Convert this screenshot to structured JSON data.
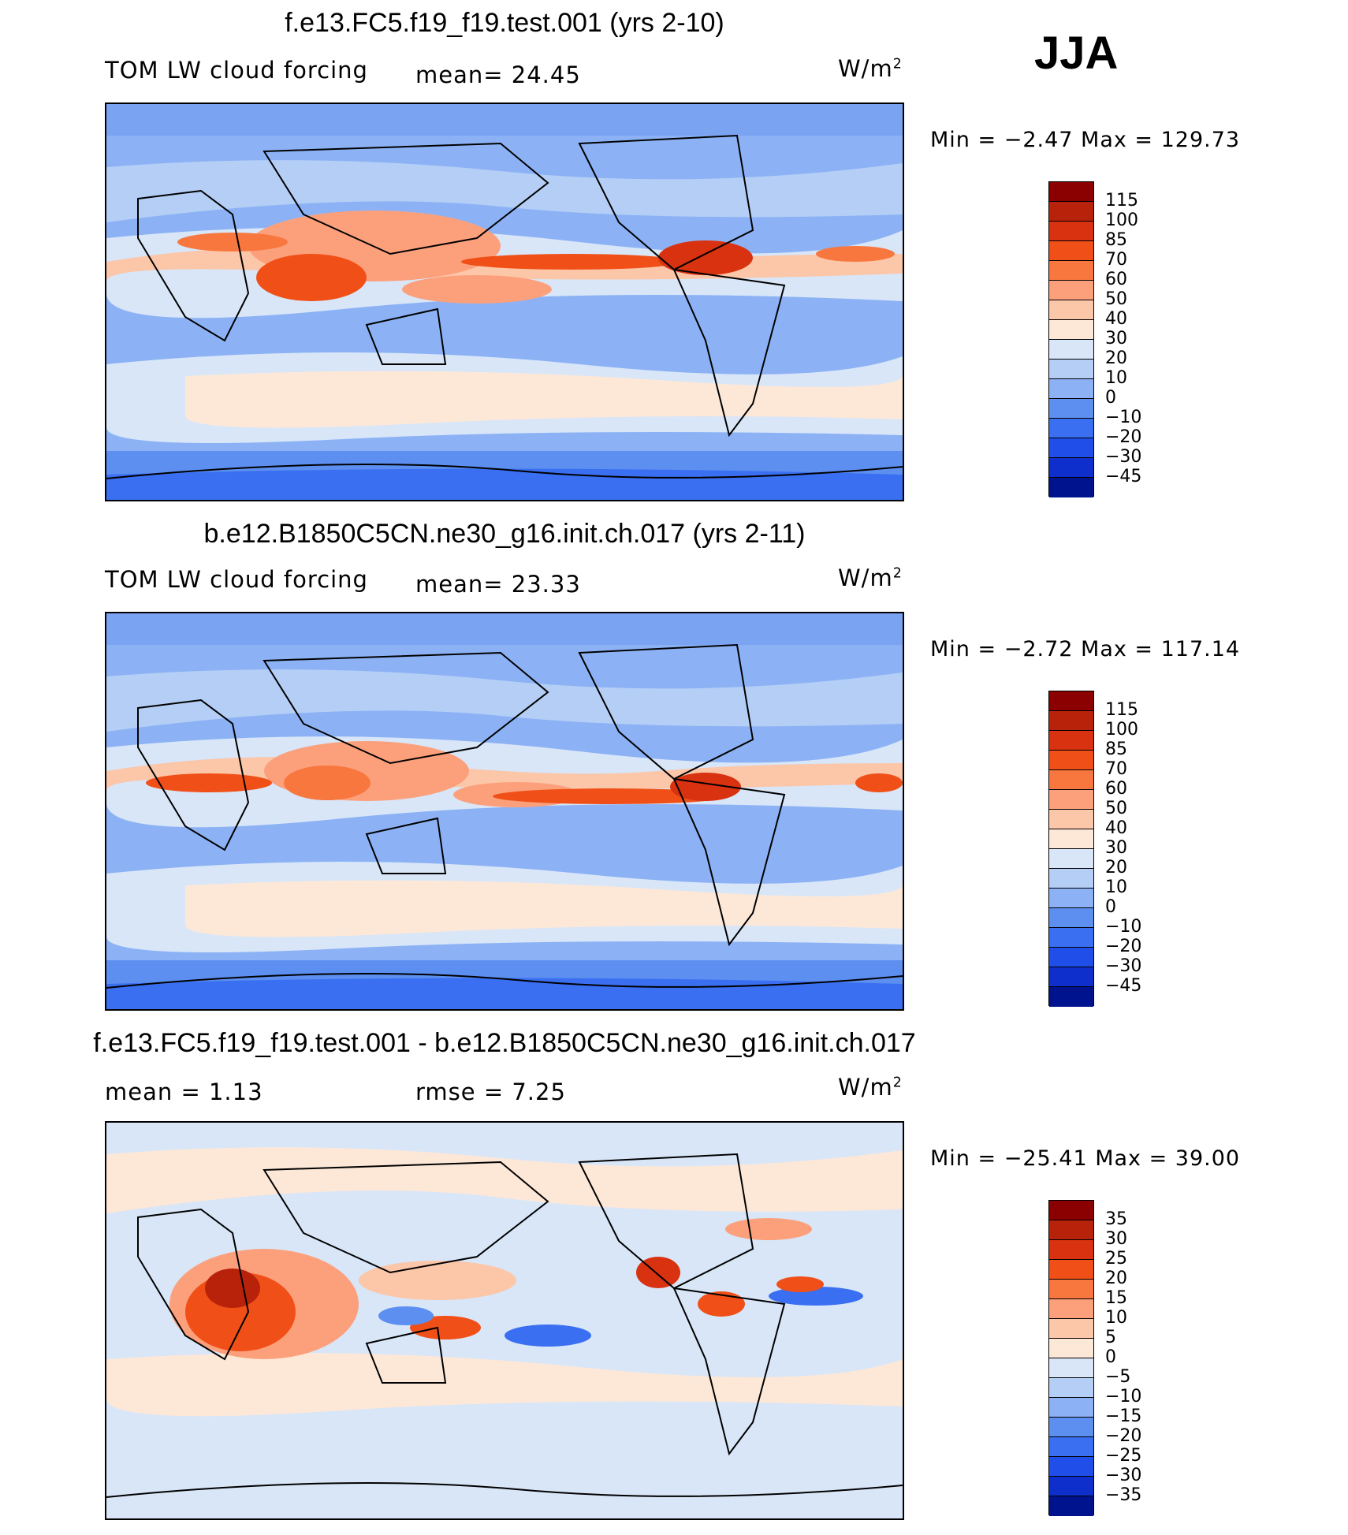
{
  "season": "JJA",
  "units_base": "W/m",
  "units_exp": "2",
  "panels": [
    {
      "title": "f.e13.FC5.f19_f19.test.001 (yrs 2-10)",
      "variable": "TOM LW cloud forcing",
      "stat1": "mean=  24.45",
      "stat2": "",
      "minmax": "Min =   −2.47 Max = 129.73",
      "levels": [
        "115",
        "100",
        "85",
        "70",
        "60",
        "50",
        "40",
        "30",
        "20",
        "10",
        "0",
        "−10",
        "−20",
        "−30",
        "−45"
      ],
      "colors": [
        "#8b0000",
        "#b8220a",
        "#d93210",
        "#f05018",
        "#f7773f",
        "#fca07c",
        "#fcc6a8",
        "#fde8d8",
        "#d8e6f8",
        "#b4cef6",
        "#8cb2f5",
        "#5c8ff0",
        "#3a6ff2",
        "#1f4fe8",
        "#0e2fcc",
        "#00138f"
      ],
      "mean": 24.45,
      "min": -2.47,
      "max": 129.73
    },
    {
      "title": "b.e12.B1850C5CN.ne30_g16.init.ch.017 (yrs 2-11)",
      "variable": "TOM LW cloud forcing",
      "stat1": "mean=  23.33",
      "stat2": "",
      "minmax": "Min =   −2.72 Max = 117.14",
      "levels": [
        "115",
        "100",
        "85",
        "70",
        "60",
        "50",
        "40",
        "30",
        "20",
        "10",
        "0",
        "−10",
        "−20",
        "−30",
        "−45"
      ],
      "colors": [
        "#8b0000",
        "#b8220a",
        "#d93210",
        "#f05018",
        "#f7773f",
        "#fca07c",
        "#fcc6a8",
        "#fde8d8",
        "#d8e6f8",
        "#b4cef6",
        "#8cb2f5",
        "#5c8ff0",
        "#3a6ff2",
        "#1f4fe8",
        "#0e2fcc",
        "#00138f"
      ],
      "mean": 23.33,
      "min": -2.72,
      "max": 117.14
    },
    {
      "title": "f.e13.FC5.f19_f19.test.001 - b.e12.B1850C5CN.ne30_g16.init.ch.017",
      "variable": "",
      "stat1": "mean =    1.13",
      "stat2": "rmse =    7.25",
      "minmax": "Min = −25.41 Max =   39.00",
      "levels": [
        "35",
        "30",
        "25",
        "20",
        "15",
        "10",
        "5",
        "0",
        "−5",
        "−10",
        "−15",
        "−20",
        "−25",
        "−30",
        "−35"
      ],
      "colors": [
        "#8b0000",
        "#b8220a",
        "#d93210",
        "#f05018",
        "#f7773f",
        "#fca07c",
        "#fcc6a8",
        "#fde8d8",
        "#d8e6f8",
        "#b4cef6",
        "#8cb2f5",
        "#5c8ff0",
        "#3a6ff2",
        "#1f4fe8",
        "#0e2fcc",
        "#00138f"
      ],
      "mean": 1.13,
      "rmse": 7.25,
      "min": -25.41,
      "max": 39.0
    }
  ]
}
